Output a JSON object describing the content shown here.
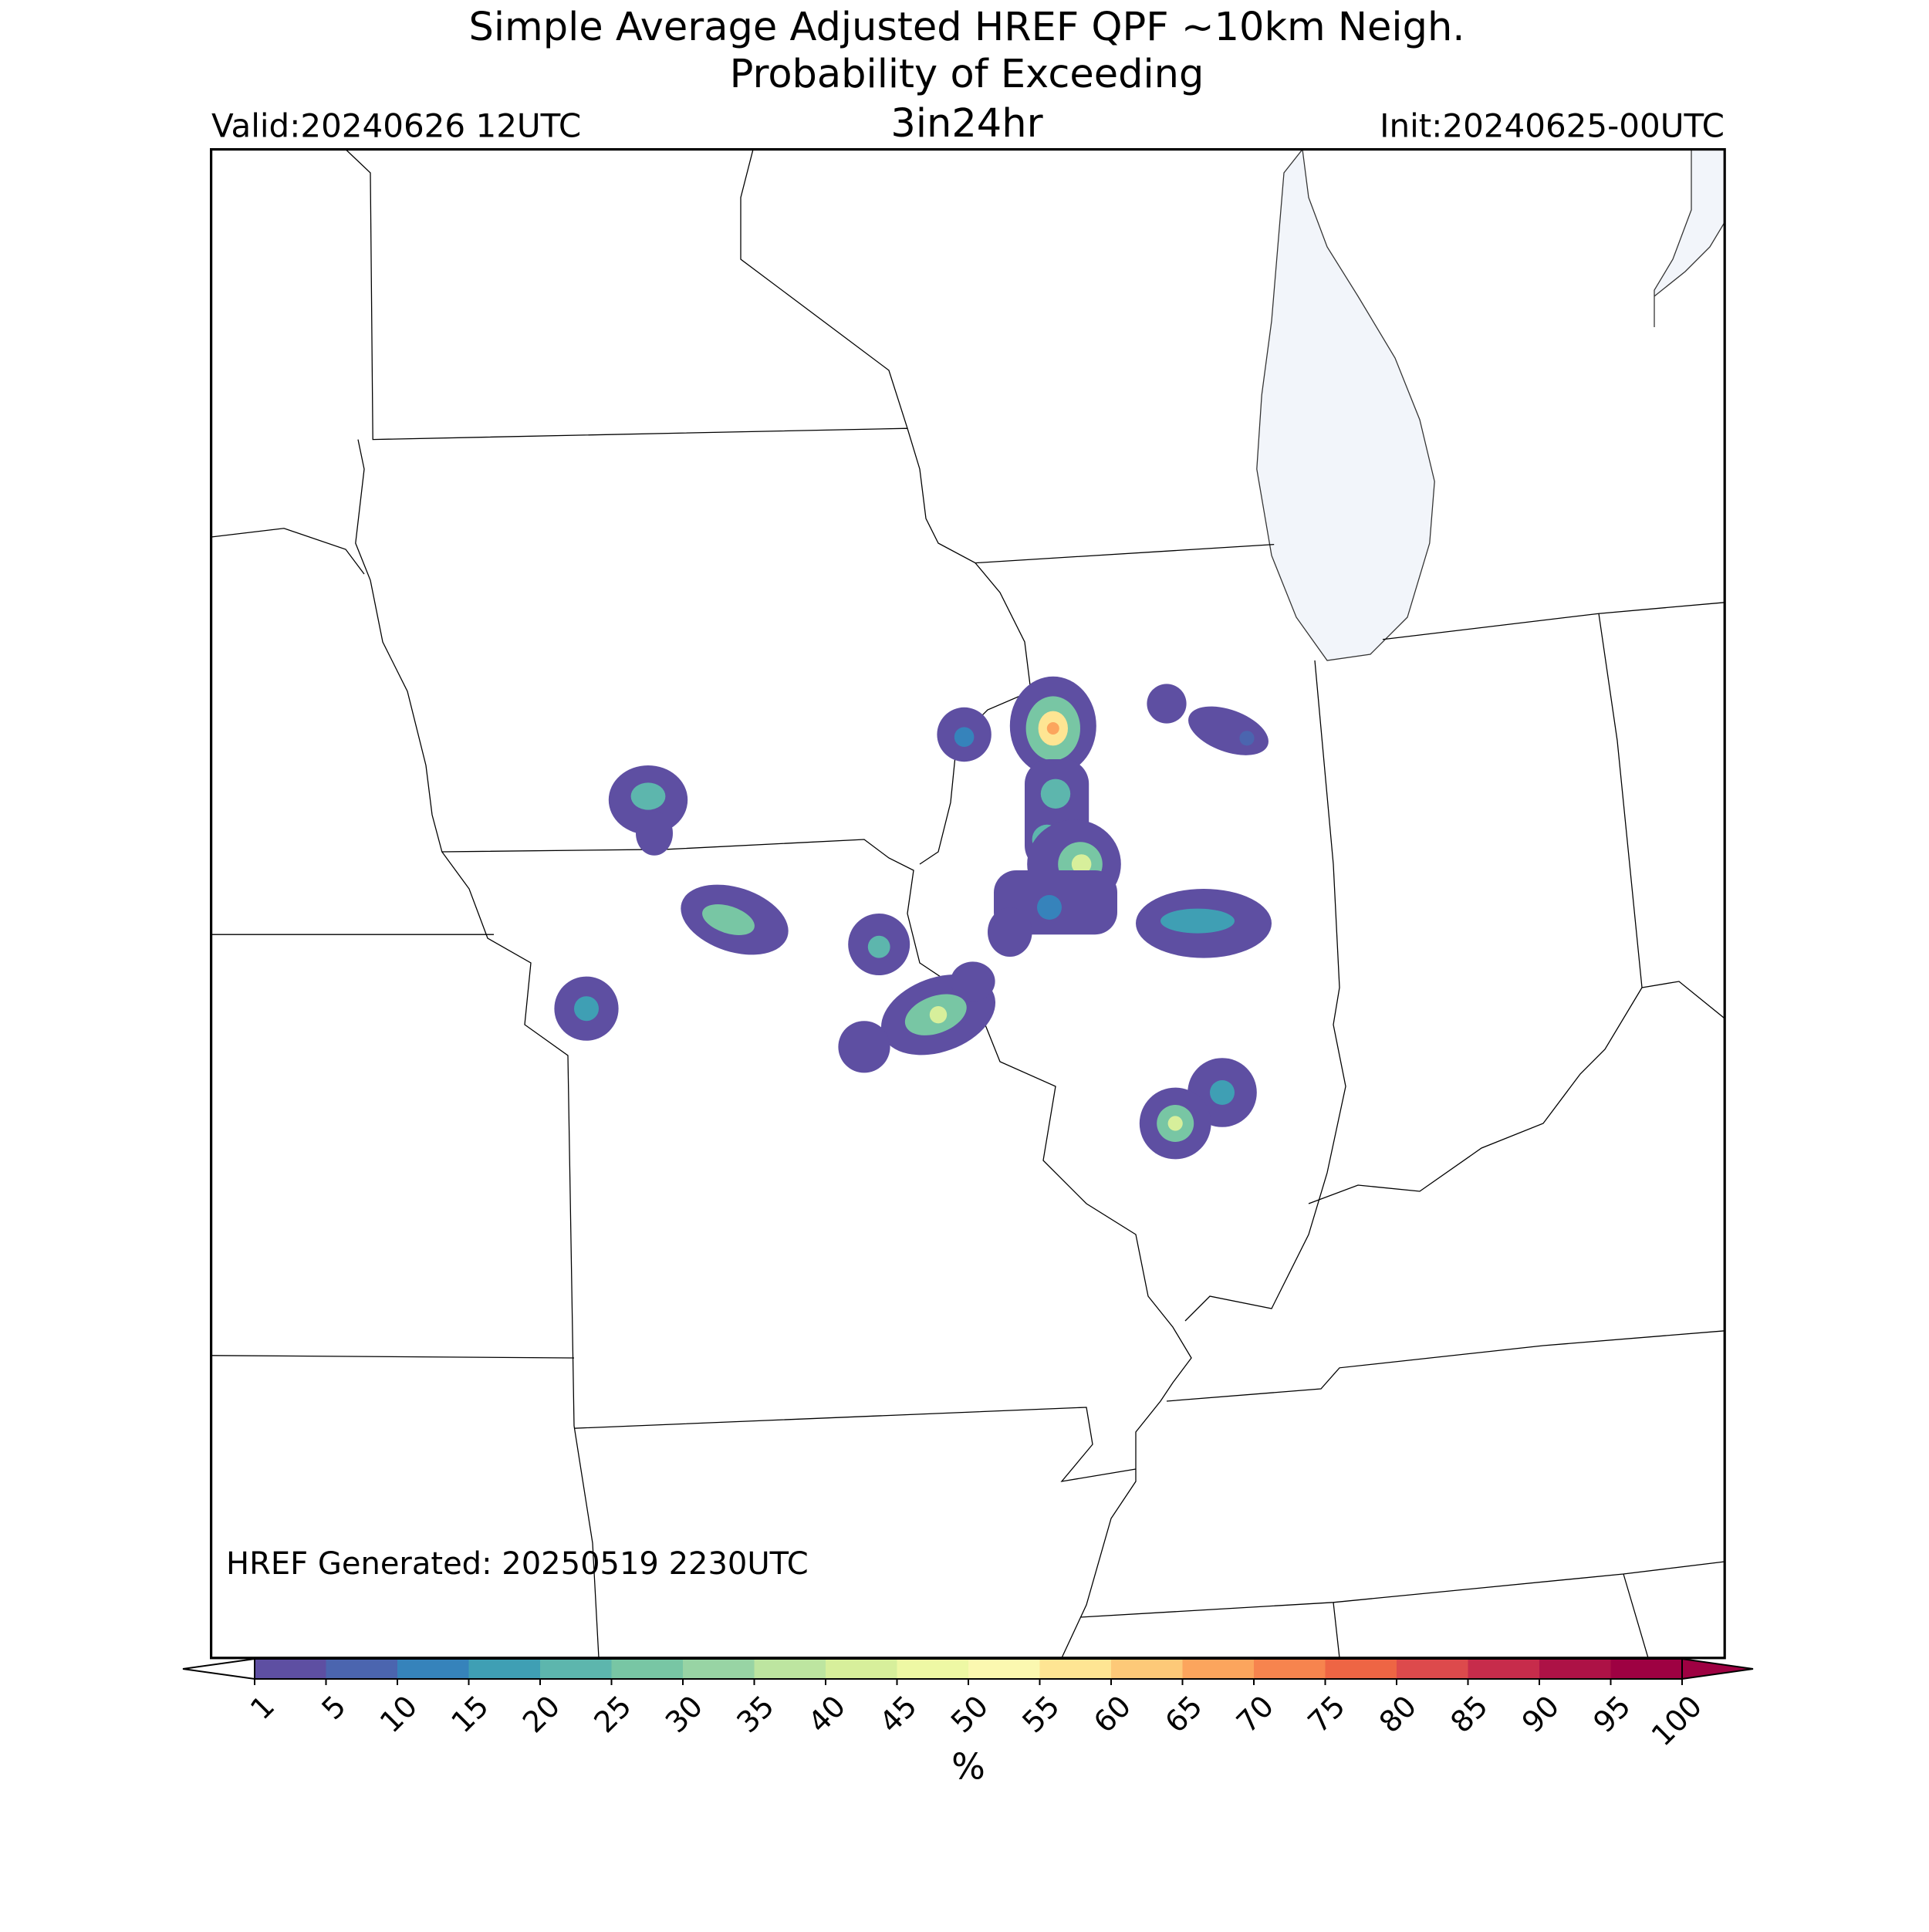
{
  "title": [
    "Simple Average Adjusted HREF QPF ~10km Neigh.",
    "Probability of Exceeding"
  ],
  "subtitle": "3in24hr",
  "valid": "Valid:20240626 12UTC",
  "init": "Init:20240625-00UTC",
  "generated": "HREF Generated: 20250519 2230UTC",
  "colorbar": {
    "label": "%",
    "ticks": [
      1,
      5,
      10,
      15,
      20,
      25,
      30,
      35,
      40,
      45,
      50,
      55,
      60,
      65,
      70,
      75,
      80,
      85,
      90,
      95,
      100
    ],
    "colors": [
      "#5e4fa2",
      "#4b65af",
      "#3683bb",
      "#3f9fb4",
      "#5db6ad",
      "#78c6a4",
      "#98d4a4",
      "#bde5a0",
      "#d7ef9b",
      "#eef8a4",
      "#fbf8b0",
      "#fee593",
      "#fdc978",
      "#fca55d",
      "#f7844e",
      "#ee6544",
      "#dd4a4c",
      "#c72c4b",
      "#ad1246",
      "#9e0142"
    ],
    "under_color": "#ffffff",
    "over_color": "#9e0142"
  }
}
